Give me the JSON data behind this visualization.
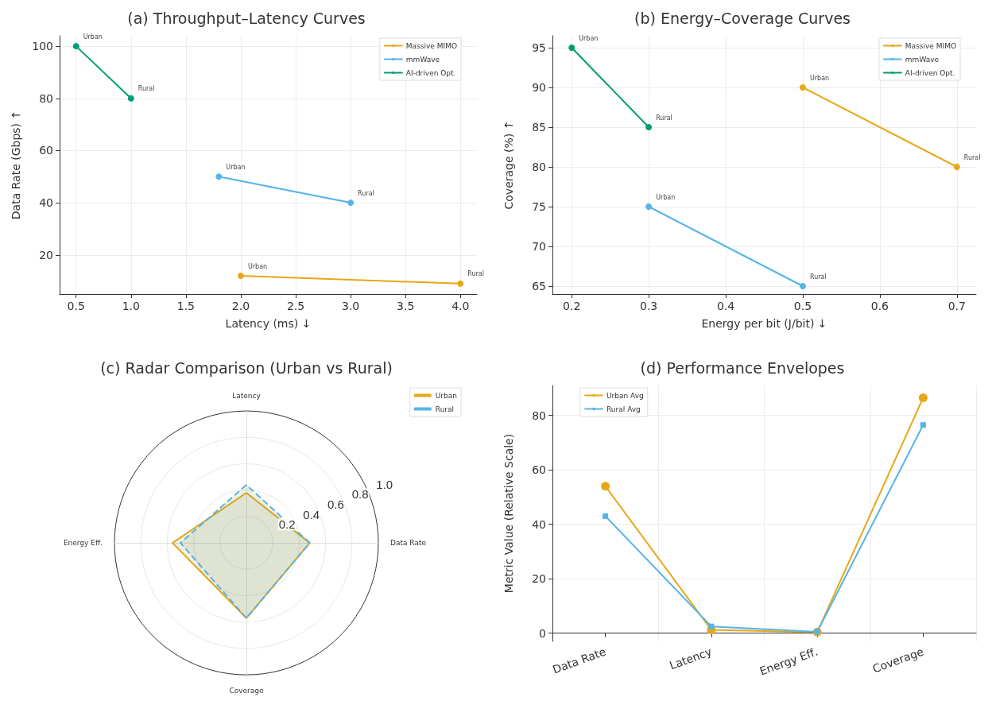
{
  "chart_data": [
    {
      "type": "line",
      "title": "(a) Throughput–Latency Curves",
      "xlabel": "Latency (ms) ↓",
      "ylabel": "Data Rate (Gbps) ↑",
      "series": [
        {
          "name": "Massive MIMO",
          "color": "#e6a817",
          "x": [
            2.0,
            4.0
          ],
          "values": [
            12,
            9
          ]
        },
        {
          "name": "mmWave",
          "color": "#56b4e9",
          "x": [
            1.8,
            3.0
          ],
          "values": [
            50,
            40
          ]
        },
        {
          "name": "AI-driven Opt.",
          "color": "#009e73",
          "x": [
            0.5,
            1.0
          ],
          "values": [
            100,
            80
          ]
        }
      ],
      "annotations": [
        {
          "text": "Urban",
          "x": 2.0,
          "y": 12
        },
        {
          "text": "Rural",
          "x": 4.0,
          "y": 9
        },
        {
          "text": "Urban",
          "x": 1.8,
          "y": 50
        },
        {
          "text": "Rural",
          "x": 3.0,
          "y": 40
        },
        {
          "text": "Urban",
          "x": 0.5,
          "y": 100
        },
        {
          "text": "Rural",
          "x": 1.0,
          "y": 80
        }
      ],
      "xlim": [
        0.35,
        4.15
      ],
      "xticks": [
        {
          "value": 0.5,
          "label": "0.5"
        },
        {
          "value": 1,
          "label": "1.0"
        },
        {
          "value": 1.5,
          "label": "1.5"
        },
        {
          "value": 2,
          "label": "2.0"
        },
        {
          "value": 2.5,
          "label": "2.5"
        },
        {
          "value": 3,
          "label": "3.0"
        },
        {
          "value": 3.5,
          "label": "3.5"
        },
        {
          "value": 4,
          "label": "4.0"
        }
      ],
      "ylim": [
        5,
        104
      ],
      "yticks": [
        20,
        40,
        60,
        80,
        100
      ],
      "grid": true,
      "legend": "top right",
      "marker": "circle"
    },
    {
      "type": "line",
      "title": "(b) Energy–Coverage Curves",
      "xlabel": "Energy per bit (J/bit) ↓",
      "ylabel": "Coverage (%) ↑",
      "series": [
        {
          "name": "Massive MIMO",
          "color": "#e6a817",
          "x": [
            0.5,
            0.7
          ],
          "values": [
            90,
            80
          ]
        },
        {
          "name": "mmWave",
          "color": "#56b4e9",
          "x": [
            0.3,
            0.5
          ],
          "values": [
            75,
            65
          ]
        },
        {
          "name": "AI-driven Opt.",
          "color": "#009e73",
          "x": [
            0.2,
            0.3
          ],
          "values": [
            95,
            85
          ]
        }
      ],
      "annotations": [
        {
          "text": "Urban",
          "x": 0.5,
          "y": 90
        },
        {
          "text": "Rural",
          "x": 0.7,
          "y": 80
        },
        {
          "text": "Urban",
          "x": 0.3,
          "y": 75
        },
        {
          "text": "Rural",
          "x": 0.5,
          "y": 65
        },
        {
          "text": "Urban",
          "x": 0.2,
          "y": 95
        },
        {
          "text": "Rural",
          "x": 0.3,
          "y": 85
        }
      ],
      "xlim": [
        0.175,
        0.725
      ],
      "xticks": [
        0.2,
        0.3,
        0.4,
        0.5,
        0.6,
        0.7
      ],
      "ylim": [
        64,
        96.5
      ],
      "yticks": [
        65,
        70,
        75,
        80,
        85,
        90,
        95
      ],
      "grid": true,
      "legend": "top right",
      "marker": "circle"
    },
    {
      "type": "radar",
      "title": "(c) Radar Comparison (Urban vs Rural)",
      "categories": [
        "Latency",
        "Data Rate",
        "Coverage",
        "Energy Eff."
      ],
      "series": [
        {
          "name": "Urban",
          "color": "#e6a817",
          "values": [
            0.38,
            0.48,
            0.57,
            0.56
          ],
          "line_style": "solid"
        },
        {
          "name": "Rural",
          "color": "#56b4e9",
          "values": [
            0.44,
            0.48,
            0.57,
            0.5
          ],
          "line_style": "dashed"
        }
      ],
      "ylim": [
        0,
        1
      ],
      "yticks": [
        {
          "value": 0.2,
          "label": "0.2"
        },
        {
          "value": 0.4,
          "label": "0.4"
        },
        {
          "value": 0.6,
          "label": "0.6"
        },
        {
          "value": 0.8,
          "label": "0.8"
        },
        {
          "value": 1,
          "label": "1.0"
        }
      ],
      "grid": true,
      "legend": "top right"
    },
    {
      "type": "line",
      "title": "(d) Performance Envelopes",
      "ylabel": "Metric Value (Relative Scale)",
      "categories": [
        "Data Rate",
        "Latency",
        "Energy Eff.",
        "Coverage"
      ],
      "series": [
        {
          "name": "Urban Avg",
          "color": "#e6a817",
          "values": [
            54,
            1.2,
            0.4,
            86.5
          ],
          "marker": "circle"
        },
        {
          "name": "Rural Avg",
          "color": "#56b4e9",
          "values": [
            43,
            2.5,
            0.5,
            76.5
          ],
          "marker": "square"
        }
      ],
      "ylim": [
        -3,
        91
      ],
      "yticks": [
        0,
        20,
        40,
        60,
        80
      ],
      "grid": true,
      "legend": "top left"
    }
  ]
}
